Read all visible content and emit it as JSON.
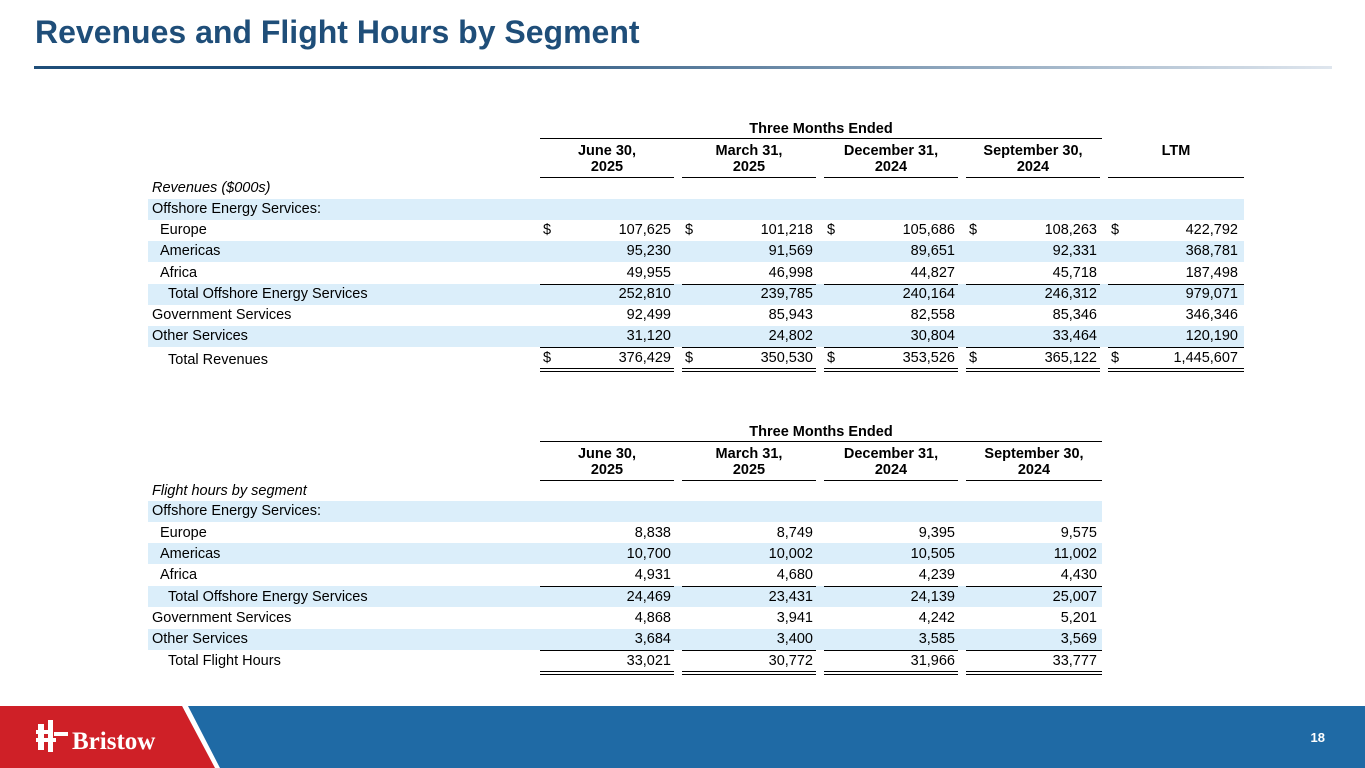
{
  "title": "Revenues and Flight Hours by Segment",
  "page_number": "18",
  "logo": {
    "text": "Bristow",
    "icon": "bristow-logo-icon"
  },
  "colors": {
    "title": "#1f4e79",
    "band": "#dbeefa",
    "footer_blue": "#1f6aa5",
    "footer_red": "#cf2027"
  },
  "revenue_table": {
    "group_header": "Three Months Ended",
    "columns": [
      {
        "line1": "June 30,",
        "line2": "2025"
      },
      {
        "line1": "March 31,",
        "line2": "2025"
      },
      {
        "line1": "December 31,",
        "line2": "2024"
      },
      {
        "line1": "September 30,",
        "line2": "2024"
      },
      {
        "line1": "",
        "line2": "LTM"
      }
    ],
    "section_label": "Revenues ($000s)",
    "rows": [
      {
        "label": "Offshore Energy Services:",
        "values": [
          "",
          "",
          "",
          "",
          ""
        ],
        "shaded": true
      },
      {
        "label": "Europe",
        "values": [
          "107,625",
          "101,218",
          "105,686",
          "108,263",
          "422,792"
        ],
        "dollar": true
      },
      {
        "label": "Americas",
        "values": [
          "95,230",
          "91,569",
          "89,651",
          "92,331",
          "368,781"
        ],
        "shaded": true
      },
      {
        "label": "Africa",
        "values": [
          "49,955",
          "46,998",
          "44,827",
          "45,718",
          "187,498"
        ]
      },
      {
        "label": "Total Offshore Energy Services",
        "values": [
          "252,810",
          "239,785",
          "240,164",
          "246,312",
          "979,071"
        ],
        "shaded": true
      },
      {
        "label": "Government Services",
        "values": [
          "92,499",
          "85,943",
          "82,558",
          "85,346",
          "346,346"
        ]
      },
      {
        "label": "Other Services",
        "values": [
          "31,120",
          "24,802",
          "30,804",
          "33,464",
          "120,190"
        ],
        "shaded": true
      },
      {
        "label": "Total Revenues",
        "values": [
          "376,429",
          "350,530",
          "353,526",
          "365,122",
          "1,445,607"
        ],
        "dollar": true
      }
    ],
    "dollar_sign": "$"
  },
  "flight_table": {
    "group_header": "Three Months Ended",
    "columns": [
      {
        "line1": "June 30,",
        "line2": "2025"
      },
      {
        "line1": "March 31,",
        "line2": "2025"
      },
      {
        "line1": "December 31,",
        "line2": "2024"
      },
      {
        "line1": "September 30,",
        "line2": "2024"
      }
    ],
    "section_label": "Flight hours by segment",
    "rows": [
      {
        "label": "Offshore Energy Services:",
        "values": [
          "",
          "",
          "",
          ""
        ],
        "shaded": true
      },
      {
        "label": "Europe",
        "values": [
          "8,838",
          "8,749",
          "9,395",
          "9,575"
        ]
      },
      {
        "label": "Americas",
        "values": [
          "10,700",
          "10,002",
          "10,505",
          "11,002"
        ],
        "shaded": true
      },
      {
        "label": "Africa",
        "values": [
          "4,931",
          "4,680",
          "4,239",
          "4,430"
        ]
      },
      {
        "label": "Total Offshore Energy Services",
        "values": [
          "24,469",
          "23,431",
          "24,139",
          "25,007"
        ],
        "shaded": true
      },
      {
        "label": "Government Services",
        "values": [
          "4,868",
          "3,941",
          "4,242",
          "5,201"
        ]
      },
      {
        "label": "Other Services",
        "values": [
          "3,684",
          "3,400",
          "3,585",
          "3,569"
        ],
        "shaded": true
      },
      {
        "label": "Total Flight Hours",
        "values": [
          "33,021",
          "30,772",
          "31,966",
          "33,777"
        ]
      }
    ]
  }
}
